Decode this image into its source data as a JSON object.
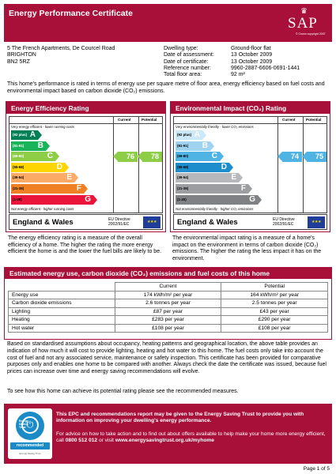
{
  "header": {
    "title": "Energy Performance Certificate",
    "logo_text": "SAP",
    "logo_copyright": "© Crown copyright 2007"
  },
  "address": [
    "5 The French Apartments, De Courcel Road",
    "BRIGHTON",
    "BN2 5RZ"
  ],
  "details": [
    {
      "label": "Dwelling type:",
      "value": "Ground-floor flat"
    },
    {
      "label": "Date of assessment:",
      "value": "13 October 2009"
    },
    {
      "label": "Date of certificate:",
      "value": "13 October 2009"
    },
    {
      "label": "Reference number:",
      "value": "9960-2887-6606-0691-1441"
    },
    {
      "label": "Total floor area:",
      "value": "92 m²"
    }
  ],
  "intro": "This home's performance is rated in terms of energy use per square metre of floor area, energy efficiency based on fuel costs and environmental impact based on carbon dioxide (CO₂) emissions.",
  "efficiency": {
    "title": "Energy Efficiency Rating",
    "col_current": "Current",
    "col_potential": "Potential",
    "top_note": "Very energy efficient - lower running costs",
    "bottom_note": "Not energy efficient - higher running costs",
    "bands": [
      {
        "range": "(92 plus)",
        "letter": "A",
        "color": "#008054"
      },
      {
        "range": "(81-91)",
        "letter": "B",
        "color": "#19b459"
      },
      {
        "range": "(69-80)",
        "letter": "C",
        "color": "#8dce46"
      },
      {
        "range": "(55-68)",
        "letter": "D",
        "color": "#ffd500"
      },
      {
        "range": "(39-54)",
        "letter": "E",
        "color": "#fcaa65"
      },
      {
        "range": "(21-38)",
        "letter": "F",
        "color": "#ef8023"
      },
      {
        "range": "(1-20)",
        "letter": "G",
        "color": "#e9153b"
      }
    ],
    "current": 76,
    "potential": 78,
    "score_color": "#8dce46",
    "region": "England & Wales",
    "eu_directive": [
      "EU Directive",
      "2002/91/EC"
    ],
    "description": "The energy efficiency rating is a measure of the overall efficiency of a home. The higher the rating the more energy efficient the home is and the lower the fuel bills are likely to be."
  },
  "environmental": {
    "title": "Environmental Impact (CO₂) Rating",
    "col_current": "Current",
    "col_potential": "Potential",
    "top_note": "Very environmentally friendly - lower CO₂ emissions",
    "bottom_note": "Not environmentally friendly - higher CO₂ emissions",
    "bands": [
      {
        "range": "(92 plus)",
        "letter": "A",
        "color": "#cde8f6"
      },
      {
        "range": "(81-91)",
        "letter": "B",
        "color": "#9fd3ef"
      },
      {
        "range": "(69-80)",
        "letter": "C",
        "color": "#4fb3e4"
      },
      {
        "range": "(55-68)",
        "letter": "D",
        "color": "#1e8dcc"
      },
      {
        "range": "(39-54)",
        "letter": "E",
        "color": "#b7b8bb"
      },
      {
        "range": "(21-38)",
        "letter": "F",
        "color": "#9d9ea1"
      },
      {
        "range": "(1-20)",
        "letter": "G",
        "color": "#808184"
      }
    ],
    "current": 74,
    "potential": 75,
    "score_color": "#4fb3e4",
    "region": "England & Wales",
    "eu_directive": [
      "EU Directive",
      "2002/91/EC"
    ],
    "description": "The environmental impact rating is a measure of a home's impact on the environment in terms of carbon dioxide (CO₂) emissions. The higher the rating the less impact it has on the environment."
  },
  "costs": {
    "title": "Estimated energy use, carbon dioxide (CO₂) emissions and fuel costs of this home",
    "col_current": "Current",
    "col_potential": "Potential",
    "rows": [
      {
        "label": "Energy use",
        "current": "174 kWh/m² per year",
        "potential": "164 kWh/m² per year"
      },
      {
        "label": "Carbon dioxide emissions",
        "current": "2.6 tonnes per year",
        "potential": "2.5 tonnes per year"
      },
      {
        "label": "Lighting",
        "current": "£87 per year",
        "potential": "£43 per year"
      },
      {
        "label": "Heating",
        "current": "£283 per year",
        "potential": "£290 per year"
      },
      {
        "label": "Hot water",
        "current": "£108 per year",
        "potential": "£108 per year"
      }
    ]
  },
  "body_paragraph": "Based on standardised assumptions about occupancy, heating patterns and geographical location, the above table provides an indication of how much it will cost to provide lighting, heating and hot water to this home. The fuel costs only take into account the cost of fuel and not any associated service, maintenance or safety inspection. This certificate has been provided for comparative purposes only and enables one home to be compared with another. Always check the date the certificate was issued, because fuel prices can increase over time and energy saving recommendations will evolve.",
  "see_text": "To see how this home can achieve its potential rating please see the recommended measures.",
  "est": {
    "logo_name": [
      "Energy",
      "Saving",
      "Trust"
    ],
    "logo_recommended": "recommended",
    "logo_small": "Energy Saving Trust",
    "line1": "This EPC and recommendations report may be given to the Energy Saving Trust to provide you with information on improving your dwelling's energy performance.",
    "line2_a": "For advice on how to take action and to find out about offers available to help make your home more energy efficient, call",
    "phone": "0800 512 012",
    "line2_b": "or visit",
    "url": "www.energysavingtrust.org.uk/myhome"
  },
  "page_number": "Page 1 of 5"
}
